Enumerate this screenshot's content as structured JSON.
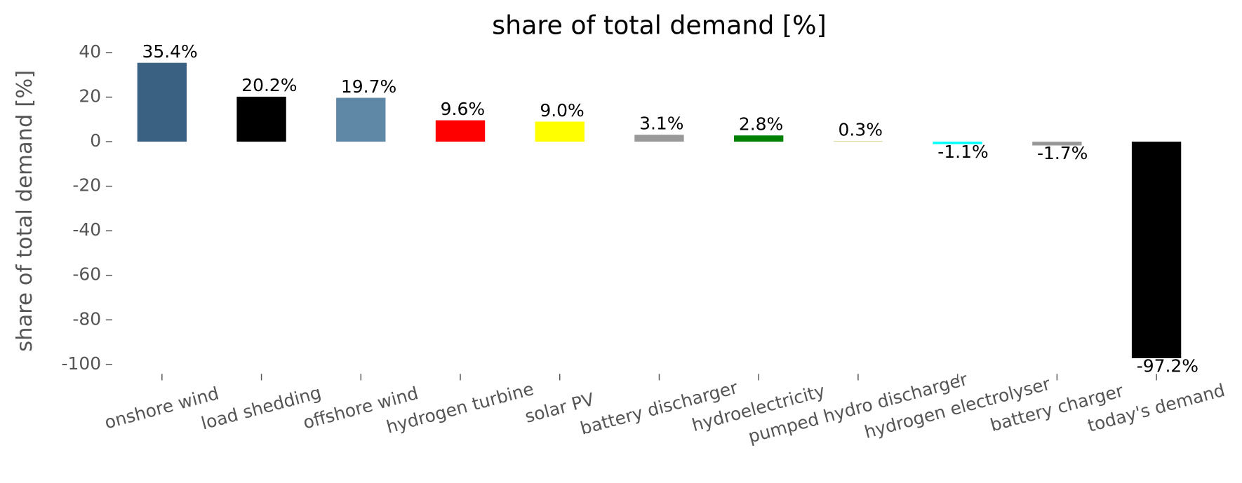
{
  "chart_data": {
    "type": "bar",
    "title": "share of total demand [%]",
    "ylabel": "share of total demand [%]",
    "categories": [
      "onshore wind",
      "load shedding",
      "offshore wind",
      "hydrogen turbine",
      "solar PV",
      "battery discharger",
      "hydroelectricity",
      "pumped hydro discharger",
      "hydrogen electrolyser",
      "battery charger",
      "today's demand"
    ],
    "values": [
      35.4,
      20.2,
      19.7,
      9.6,
      9.0,
      3.1,
      2.8,
      0.3,
      -1.1,
      -1.7,
      -97.2
    ],
    "value_labels": [
      "35.4%",
      "20.2%",
      "19.7%",
      "9.6%",
      "9.0%",
      "3.1%",
      "2.8%",
      "0.3%",
      "-1.1%",
      "-1.7%",
      "-97.2%"
    ],
    "colors": [
      "#3b6182",
      "#000000",
      "#5f87a6",
      "#ff0000",
      "#ffff00",
      "#999999",
      "#008000",
      "#d8d890",
      "#00ffff",
      "#999999",
      "#000000"
    ],
    "ylim": [
      -105,
      42
    ],
    "yticks": [
      -100,
      -80,
      -60,
      -40,
      -20,
      0,
      20,
      40
    ],
    "grid": false
  }
}
